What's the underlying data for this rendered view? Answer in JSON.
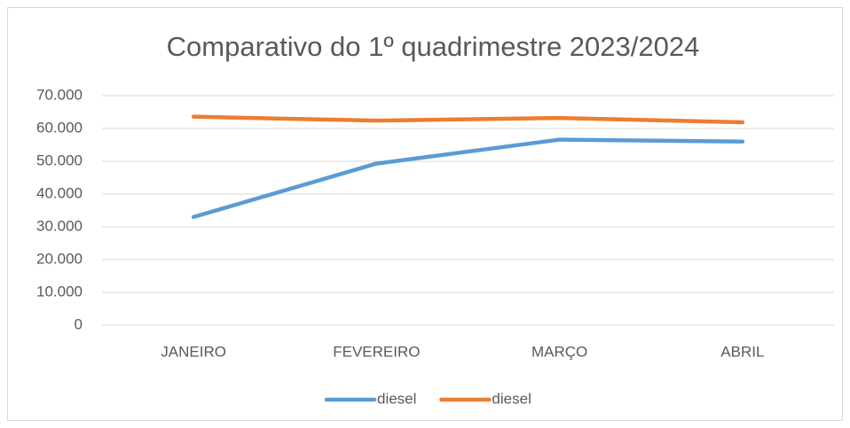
{
  "chart_data": {
    "type": "line",
    "title": "Comparativo do 1º quadrimestre 2023/2024",
    "categories": [
      "JANEIRO",
      "FEVEREIRO",
      "MARÇO",
      "ABRIL"
    ],
    "series": [
      {
        "name": "diesel",
        "color": "#5b9bd5",
        "values": [
          33000,
          49300,
          56600,
          56000
        ]
      },
      {
        "name": "diesel",
        "color": "#ed7d31",
        "values": [
          63600,
          62400,
          63200,
          61900
        ]
      }
    ],
    "ylim": [
      0,
      70000
    ],
    "yticks": [
      0,
      {
        "value": 10000,
        "label": "10.000"
      },
      {
        "value": 20000,
        "label": "20.000"
      },
      {
        "value": 30000,
        "label": "30.000"
      },
      {
        "value": 40000,
        "label": "40.000"
      },
      {
        "value": 50000,
        "label": "50.000"
      },
      {
        "value": 60000,
        "label": "60.000"
      },
      {
        "value": 70000,
        "label": "70.000"
      }
    ],
    "grid": true,
    "legend": "bottom"
  }
}
